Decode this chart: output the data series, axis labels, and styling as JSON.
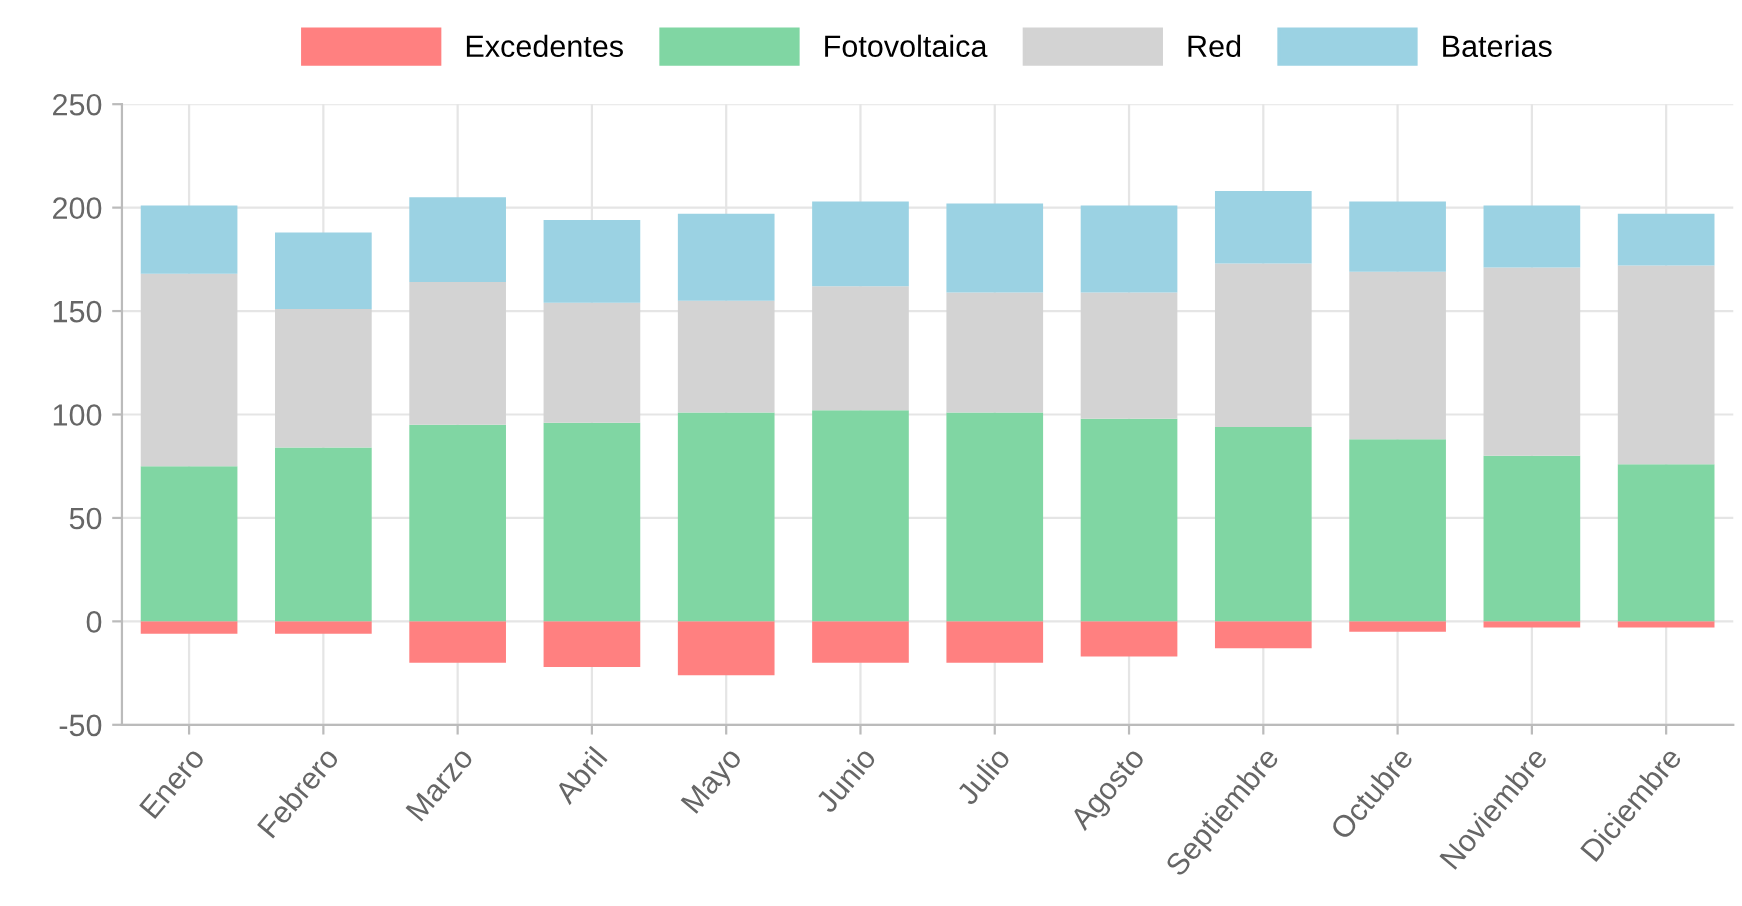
{
  "chart_data": {
    "type": "bar",
    "stacked": true,
    "categories": [
      "Enero",
      "Febrero",
      "Marzo",
      "Abril",
      "Mayo",
      "Junio",
      "Julio",
      "Agosto",
      "Septiembre",
      "Octubre",
      "Noviembre",
      "Diciembre"
    ],
    "series": [
      {
        "name": "Excedentes",
        "color": "#ff8080",
        "values": [
          -6,
          -6,
          -20,
          -22,
          -26,
          -20,
          -20,
          -17,
          -13,
          -5,
          -3,
          -3
        ]
      },
      {
        "name": "Fotovoltaica",
        "color": "#80d6a3",
        "values": [
          75,
          84,
          95,
          96,
          101,
          102,
          101,
          98,
          94,
          88,
          80,
          76
        ]
      },
      {
        "name": "Red",
        "color": "#d3d3d3",
        "values": [
          93,
          67,
          69,
          58,
          54,
          60,
          58,
          61,
          79,
          81,
          91,
          96
        ]
      },
      {
        "name": "Baterias",
        "color": "#9bd2e3",
        "values": [
          33,
          37,
          41,
          40,
          42,
          41,
          43,
          42,
          35,
          34,
          30,
          25
        ]
      }
    ],
    "ylim": [
      -50,
      250
    ],
    "yticks": [
      -50,
      0,
      50,
      100,
      150,
      200,
      250
    ],
    "grid": true,
    "legend": "top"
  }
}
